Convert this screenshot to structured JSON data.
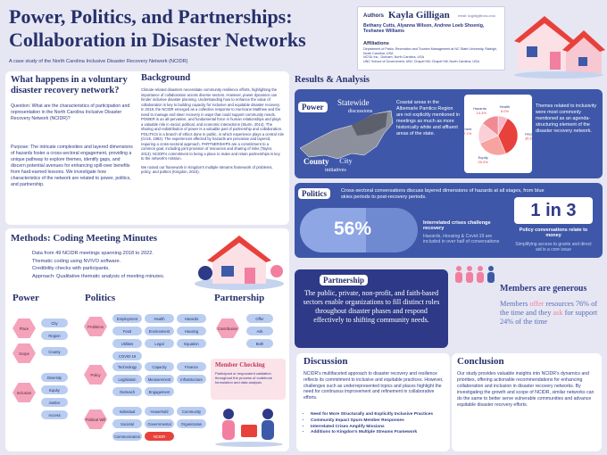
{
  "header": {
    "title": "Power, Politics, and Partnerships: Collaboration in Disaster Networks",
    "subtitle": "A case study of the North Carolina Inclusive Disaster Recovery Network (NCIDR)",
    "authors_label": "Authors",
    "lead_author": "Kayla Gilligan",
    "email": "email: kcgillig@ncsu.edu",
    "coauthors": "Bethany Cutts, Alyanna Wilson, Andrew Loeb Shoenig, Teshanee Williams",
    "affiliations_label": "Affiliations",
    "affiliations": [
      "Department of Parks, Recreation and Tourism Management at NC State University, Raleigh, North Carolina, USA",
      "NCSU Inc., Durham, North Carolina, USA",
      "UNC School of Government, UNC Chapel Hill, Chapel Hill, North Carolina, USA"
    ]
  },
  "intro": {
    "heading": "What happens in a voluntary disaster recovery network?",
    "question": "Question: What are the characteristics of participation and representation in the North Carolina Inclusive Disaster Recovery Network (NCIDR)?",
    "purpose": "Purpose: The intricate complexities and layered dimensions of hazards foster a cross-sectoral engagement, providing a unique pathway to explore themes, identify gaps, and discern potential avenues for enhancing spill-over benefits from hard-earned lessons. We investigate how characteristics of the network are related to power, politics, and partnership."
  },
  "background": {
    "heading": "Background",
    "paragraphs": [
      "Climate-related disasters necessitate community resilience efforts, highlighting the importance of collaboration across diverse sectors. However, power dynamics can hinder inclusive disaster planning. Understanding how to enhance the value of collaboration is key to building capacity for inclusive and equitable disaster recovery. In 2019, the NCIDR emerged as a collective response to Hurricane Matthew and the need to manage and steer recovery in ways that could support community needs. POWER is an all-pervasive, and fundamental force in human relationships and plays a valuable role in social, political, and economic interactions (Sturm, 2014). The sharing and redistribution of power is a valuable part of partnership and collaboration. POLITICS is a branch of ethics done in public, in which experience plays a central role (Crick, 1992). The experiences affected by hazards are pervasive and layered, requiring a cross-sectoral approach. PARTNERSHIPS are a commitment to a common goal, including joint provision of resources and sharing of risks (Taylor, 2013). NCIDR's commitment to being a place to make and retain partnerships is key to the network's mission.",
      "We rooted our framework in Kingdon's multiple streams framework of problems, policy, and politics (Kingdon, 2010)."
    ]
  },
  "methods": {
    "heading": "Methods: Coding Meeting Minutes",
    "bullets": [
      "Data from 49 NCIDR meetings spanning 2018 to 2022.",
      "Thematic coding using NVIVO software.",
      "Credibility checks with participants.",
      "Approach: Qualitative thematic analysis of meeting minutes."
    ],
    "codes": {
      "power": {
        "title": "Power",
        "groups": [
          {
            "label": "Place",
            "items": [
              "City",
              "Region"
            ]
          },
          {
            "label": "Scope",
            "items": [
              "County"
            ]
          },
          {
            "label": "Inclusion",
            "items": [
              "Diversity",
              "Equity",
              "Justice",
              "Access"
            ]
          }
        ]
      },
      "politics": {
        "title": "Politics",
        "groups": [
          {
            "label": "Problems",
            "items": [
              "Employment",
              "Health",
              "Hazards",
              "Food",
              "Environment",
              "Housing",
              "Utilities",
              "Legal",
              "Equation",
              "COVID-19"
            ]
          },
          {
            "label": "Policy",
            "items": [
              "Technology",
              "Capacity",
              "Finance",
              "Legislation",
              "Measurement",
              "Infrastructure",
              "Outreach",
              "Engagement"
            ]
          },
          {
            "label": "Political Will",
            "items": [
              "Individual",
              "Household",
              "Community",
              "Societal",
              "Governmental",
              "Organization",
              "Communication",
              "NCIDR"
            ]
          }
        ]
      },
      "partnership": {
        "title": "Partnership",
        "groups": [
          {
            "label": "Contribution",
            "items": [
              "Offer",
              "Ask",
              "Both"
            ]
          }
        ]
      }
    },
    "member_checking": {
      "title": "Member Checking",
      "text": "Participant or respondent validation throughout the process of codebook formulation and data analysis"
    }
  },
  "results": {
    "heading": "Results & Analysis",
    "power": {
      "label": "Power",
      "map_labels": [
        "Statewide",
        "discussions",
        "County",
        "City",
        "initiatives"
      ],
      "finding": "Coastal areas in the Albemarle Pamlico Region are not explicitly mentioned in meetings as much as more historically white and affluent areas of the state.",
      "pie": {
        "labels": [
          "Health",
          "Housing",
          "Equity",
          "Environment",
          "Hazards"
        ],
        "values": [
          8.0,
          35.6,
          25.0,
          17.1,
          14.3
        ],
        "value_labels": [
          "8.0%",
          "35.6%",
          "25.0%",
          "17.1%",
          "14.3%"
        ],
        "colors": [
          "#f6b8c8",
          "#e8413c",
          "#f7a3a0",
          "#f9d0d6",
          "#f18a93"
        ]
      },
      "themes": "Themes related to inclusivity were most commonly mentioned as an agenda-structuring element of the disaster recovery network."
    },
    "politics": {
      "label": "Politics",
      "finding": "Cross-sectoral conversations discuss layered dimensions of hazards at all stages, from blue skies periods to post-recovery periods.",
      "stat1": "56%",
      "stat1_title": "Interrelated crises challenge recovery",
      "stat1_text": "Hazards, Housing & Covid-19 are included in over half of conversations",
      "stat2": "1 in 3",
      "stat2_title": "Policy conversations relate to money",
      "stat2_text": "Simplifying access to grants and direct aid is a core issue"
    },
    "partnership": {
      "label": "Partnership",
      "finding": "The public, private, non-profit, and faith-based sectors enable organizations to fill distinct roles throughout disaster phases and respond effectively to shifting community needs.",
      "generous_title": "Members are generous",
      "generous_text": [
        "Members ",
        "offer",
        " resources 76% of the time and they ",
        "ask",
        " for support 24% of the time"
      ]
    }
  },
  "discussion": {
    "heading": "Discussion",
    "text": "NCIDR's multifaceted approach to disaster recovery and resilience reflects its commitment to inclusive and equitable practices. However, challenges such as underrepresented topics and places highlight the need for continuous improvement and refinement in collaborative efforts.",
    "bullets": [
      "Need for More Structurally and Explicitly Inclusive Practices",
      "Community Impact Spurs Member Responses",
      "Interrelated Crises Amplify Missions",
      "Additions to Kingdon's Multiple Streams Framework"
    ]
  },
  "conclusion": {
    "heading": "Conclusion",
    "text": "Our study provides valuable insights into NCIDR's dynamics and priorities, offering actionable recommendations for enhancing collaboration and inclusion in disaster recovery networks. By investigating the growth and scope of NCIDR, similar networks can do the same to better serve vulnerable communities and advance equitable disaster recovery efforts."
  }
}
